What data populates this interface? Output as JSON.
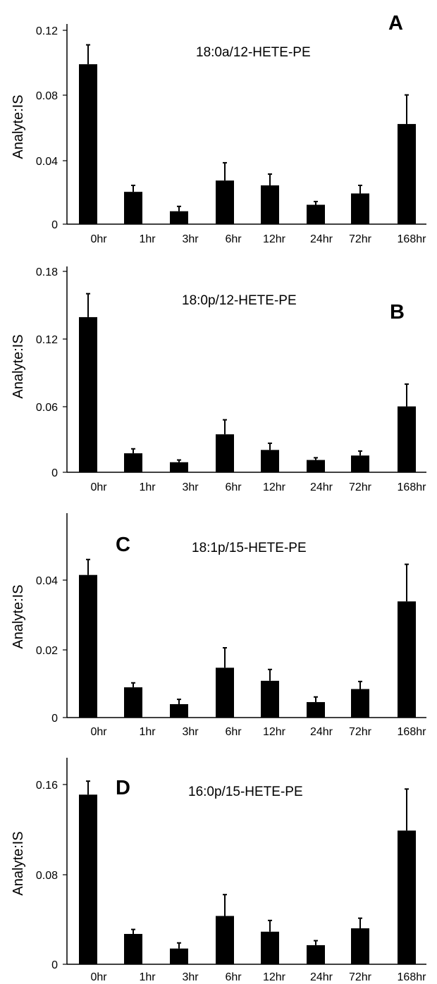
{
  "chart_data": [
    {
      "type": "bar",
      "panel_letter": "A",
      "title": "18:0a/12-HETE-PE",
      "xlabel": "",
      "ylabel": "Analyte:IS",
      "categories": [
        "0hr",
        "1hr",
        "3hr",
        "6hr",
        "12hr",
        "24hr",
        "72hr",
        "168hr"
      ],
      "values": [
        0.099,
        0.02,
        0.008,
        0.027,
        0.024,
        0.012,
        0.019,
        0.062
      ],
      "errors": [
        0.012,
        0.004,
        0.003,
        0.011,
        0.007,
        0.002,
        0.005,
        0.018
      ],
      "ylim": [
        0,
        0.12
      ],
      "yticks": [
        "0",
        "0.04",
        "0.08",
        "0.12"
      ]
    },
    {
      "type": "bar",
      "panel_letter": "B",
      "title": "18:0p/12-HETE-PE",
      "xlabel": "",
      "ylabel": "Analyte:IS",
      "categories": [
        "0hr",
        "1hr",
        "3hr",
        "6hr",
        "12hr",
        "24hr",
        "72hr",
        "168hr"
      ],
      "values": [
        0.139,
        0.017,
        0.009,
        0.034,
        0.02,
        0.011,
        0.015,
        0.059
      ],
      "errors": [
        0.021,
        0.004,
        0.002,
        0.013,
        0.006,
        0.002,
        0.004,
        0.02
      ],
      "ylim": [
        0,
        0.18
      ],
      "yticks": [
        "0",
        "0.06",
        "0.12",
        "0.18"
      ]
    },
    {
      "type": "bar",
      "panel_letter": "C",
      "title": "18:1p/15-HETE-PE",
      "xlabel": "",
      "ylabel": "Analyte:IS",
      "categories": [
        "0hr",
        "1hr",
        "3hr",
        "6hr",
        "12hr",
        "24hr",
        "72hr",
        "168hr"
      ],
      "values": [
        0.0415,
        0.0088,
        0.0039,
        0.0145,
        0.0107,
        0.0045,
        0.0083,
        0.0338
      ],
      "errors": [
        0.0045,
        0.0013,
        0.0014,
        0.0058,
        0.0033,
        0.0015,
        0.0022,
        0.0108
      ],
      "ylim": [
        0,
        0.05
      ],
      "yticks": [
        "0",
        "0.02",
        "0.04"
      ]
    },
    {
      "type": "bar",
      "panel_letter": "D",
      "title": "16:0p/15-HETE-PE",
      "xlabel": "",
      "ylabel": "Analyte:IS",
      "categories": [
        "0hr",
        "1hr",
        "3hr",
        "6hr",
        "12hr",
        "24hr",
        "72hr",
        "168hr"
      ],
      "values": [
        0.151,
        0.027,
        0.014,
        0.043,
        0.029,
        0.017,
        0.032,
        0.119
      ],
      "errors": [
        0.012,
        0.004,
        0.005,
        0.019,
        0.01,
        0.004,
        0.009,
        0.037
      ],
      "ylim": [
        0,
        0.18
      ],
      "yticks": [
        "0",
        "0.08",
        "0.16"
      ]
    }
  ]
}
